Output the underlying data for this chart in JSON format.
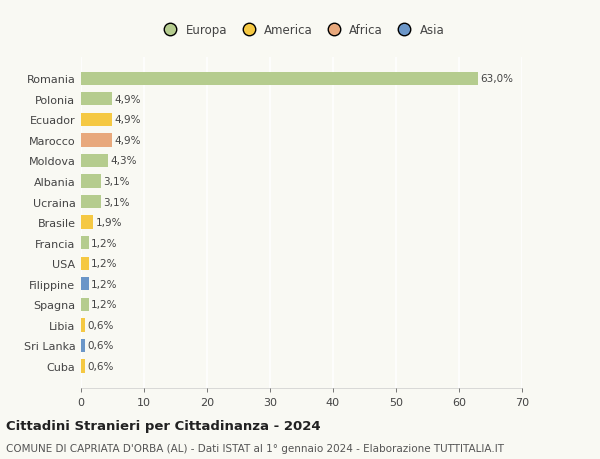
{
  "countries": [
    "Romania",
    "Polonia",
    "Ecuador",
    "Marocco",
    "Moldova",
    "Albania",
    "Ucraina",
    "Brasile",
    "Francia",
    "USA",
    "Filippine",
    "Spagna",
    "Libia",
    "Sri Lanka",
    "Cuba"
  ],
  "values": [
    63.0,
    4.9,
    4.9,
    4.9,
    4.3,
    3.1,
    3.1,
    1.9,
    1.2,
    1.2,
    1.2,
    1.2,
    0.6,
    0.6,
    0.6
  ],
  "labels": [
    "63,0%",
    "4,9%",
    "4,9%",
    "4,9%",
    "4,3%",
    "3,1%",
    "3,1%",
    "1,9%",
    "1,2%",
    "1,2%",
    "1,2%",
    "1,2%",
    "0,6%",
    "0,6%",
    "0,6%"
  ],
  "colors": [
    "#b5cc8e",
    "#b5cc8e",
    "#f5c842",
    "#e8a87c",
    "#b5cc8e",
    "#b5cc8e",
    "#b5cc8e",
    "#f5c842",
    "#b5cc8e",
    "#f5c842",
    "#6b96c8",
    "#b5cc8e",
    "#f5c842",
    "#6b96c8",
    "#f5c842"
  ],
  "legend": [
    {
      "label": "Europa",
      "color": "#b5cc8e"
    },
    {
      "label": "America",
      "color": "#f5c842"
    },
    {
      "label": "Africa",
      "color": "#e8a87c"
    },
    {
      "label": "Asia",
      "color": "#6b96c8"
    }
  ],
  "xlim": [
    0,
    70
  ],
  "xticks": [
    0,
    10,
    20,
    30,
    40,
    50,
    60,
    70
  ],
  "title": "Cittadini Stranieri per Cittadinanza - 2024",
  "subtitle": "COMUNE DI CAPRIATA D'ORBA (AL) - Dati ISTAT al 1° gennaio 2024 - Elaborazione TUTTITALIA.IT",
  "background_color": "#f9f9f3",
  "grid_color": "#ffffff",
  "bar_height": 0.65,
  "label_fontsize": 7.5,
  "ytick_fontsize": 8.0,
  "xtick_fontsize": 8.0,
  "title_fontsize": 9.5,
  "subtitle_fontsize": 7.5,
  "legend_fontsize": 8.5
}
